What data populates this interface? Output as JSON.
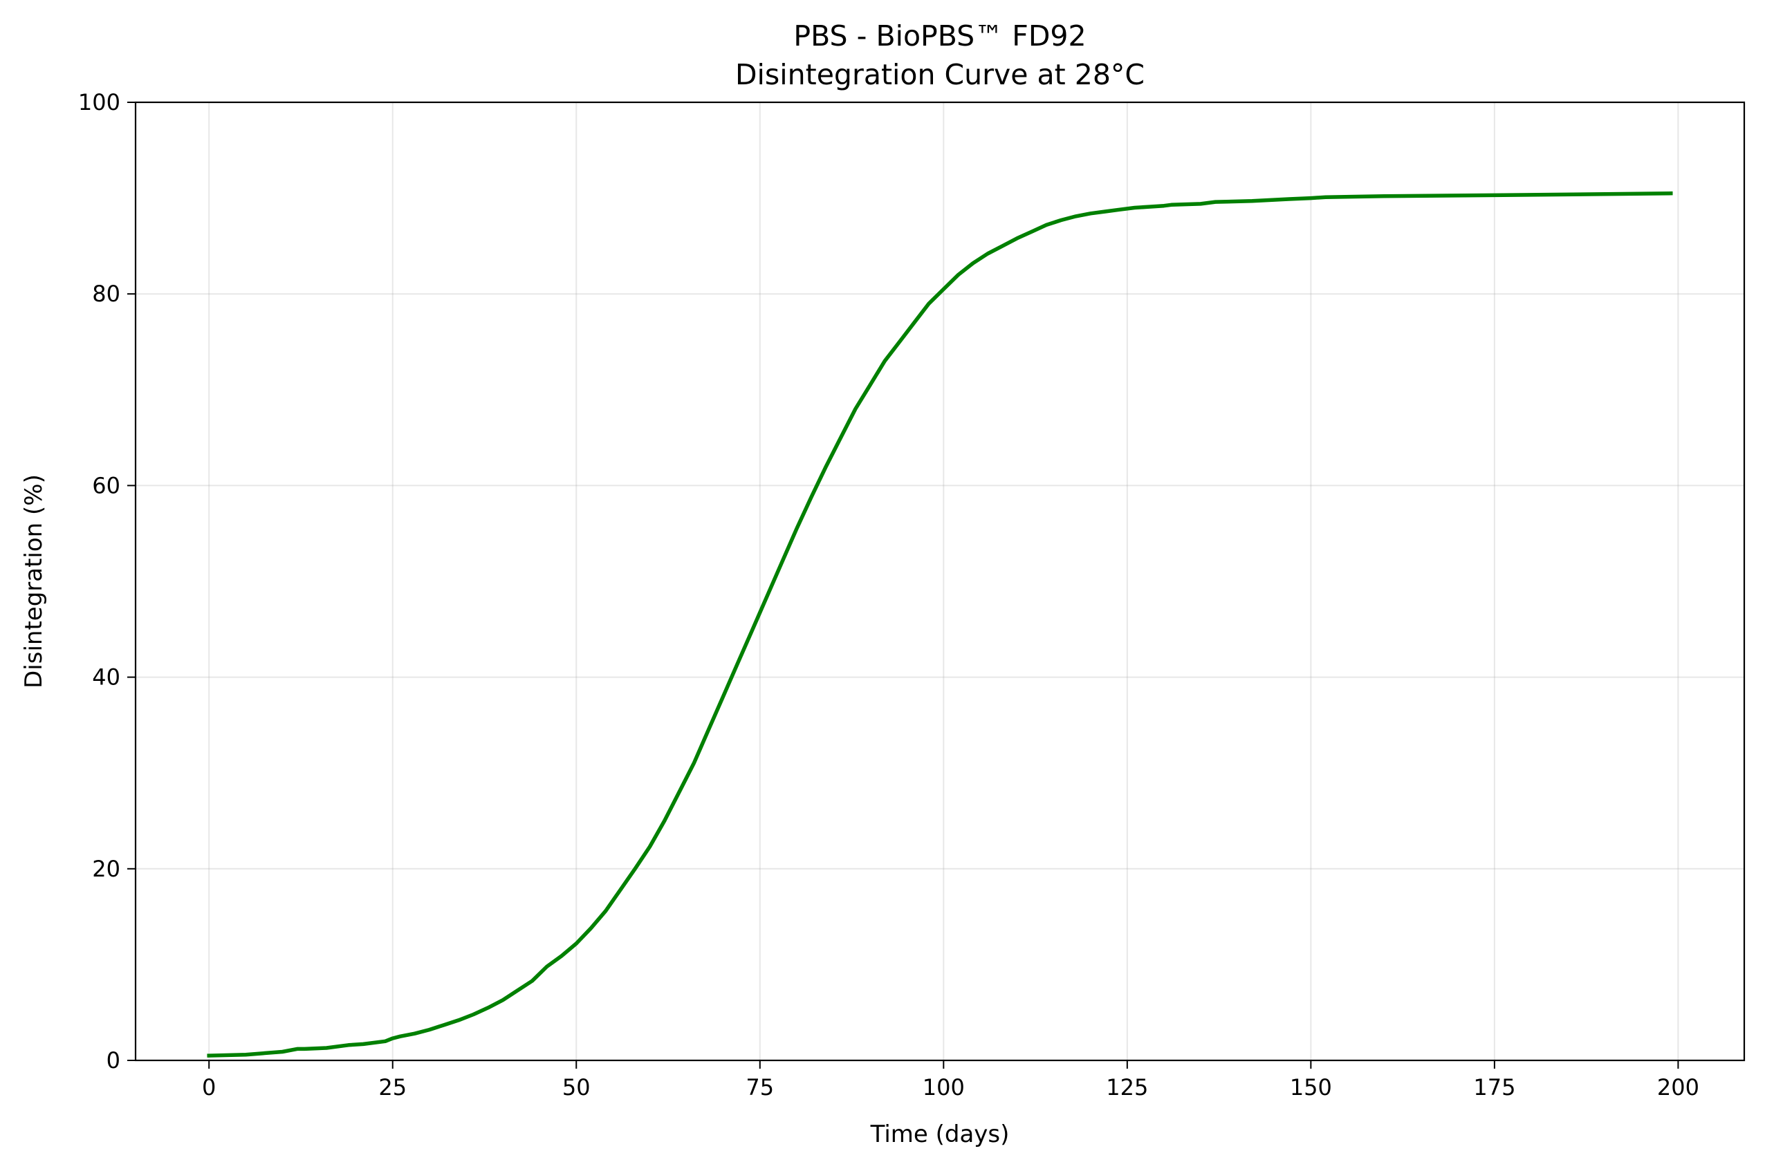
{
  "chart_data": {
    "type": "line",
    "title_lines": [
      "PBS - BioPBS™ FD92",
      "Disintegration Curve at 28°C"
    ],
    "xlabel": "Time (days)",
    "ylabel": "Disintegration (%)",
    "xlim": [
      -10,
      209
    ],
    "ylim": [
      0,
      100
    ],
    "xticks": [
      0,
      25,
      50,
      75,
      100,
      125,
      150,
      175,
      200
    ],
    "yticks": [
      0,
      20,
      40,
      60,
      80,
      100
    ],
    "grid": true,
    "series": [
      {
        "color": "#008000",
        "x": [
          0,
          5,
          10,
          12,
          13,
          16,
          19,
          21,
          24,
          25,
          26,
          28,
          30,
          32,
          34,
          36,
          38,
          40,
          42,
          44,
          46,
          48,
          50,
          52,
          54,
          56,
          58,
          60,
          62,
          64,
          66,
          68,
          70,
          72,
          74,
          76,
          78,
          80,
          82,
          84,
          86,
          88,
          90,
          92,
          94,
          96,
          98,
          100,
          102,
          104,
          106,
          108,
          110,
          112,
          114,
          116,
          118,
          120,
          122,
          124,
          126,
          128,
          130,
          131,
          135,
          137,
          142,
          147,
          150,
          152,
          160,
          175,
          199
        ],
        "y": [
          0.5,
          0.6,
          0.9,
          1.2,
          1.2,
          1.3,
          1.6,
          1.7,
          2.0,
          2.3,
          2.5,
          2.8,
          3.2,
          3.7,
          4.2,
          4.8,
          5.5,
          6.3,
          7.3,
          8.3,
          9.8,
          10.9,
          12.2,
          13.8,
          15.6,
          17.8,
          20.0,
          22.3,
          25.0,
          28.0,
          31.0,
          34.5,
          38.0,
          41.5,
          45.0,
          48.5,
          52.0,
          55.5,
          58.8,
          62.0,
          65.0,
          68.0,
          70.5,
          73.0,
          75.0,
          77.0,
          79.0,
          80.5,
          82.0,
          83.2,
          84.2,
          85.0,
          85.8,
          86.5,
          87.2,
          87.7,
          88.1,
          88.4,
          88.6,
          88.8,
          89.0,
          89.1,
          89.2,
          89.3,
          89.4,
          89.6,
          89.7,
          89.9,
          90.0,
          90.1,
          90.2,
          90.3,
          90.5
        ]
      }
    ]
  }
}
